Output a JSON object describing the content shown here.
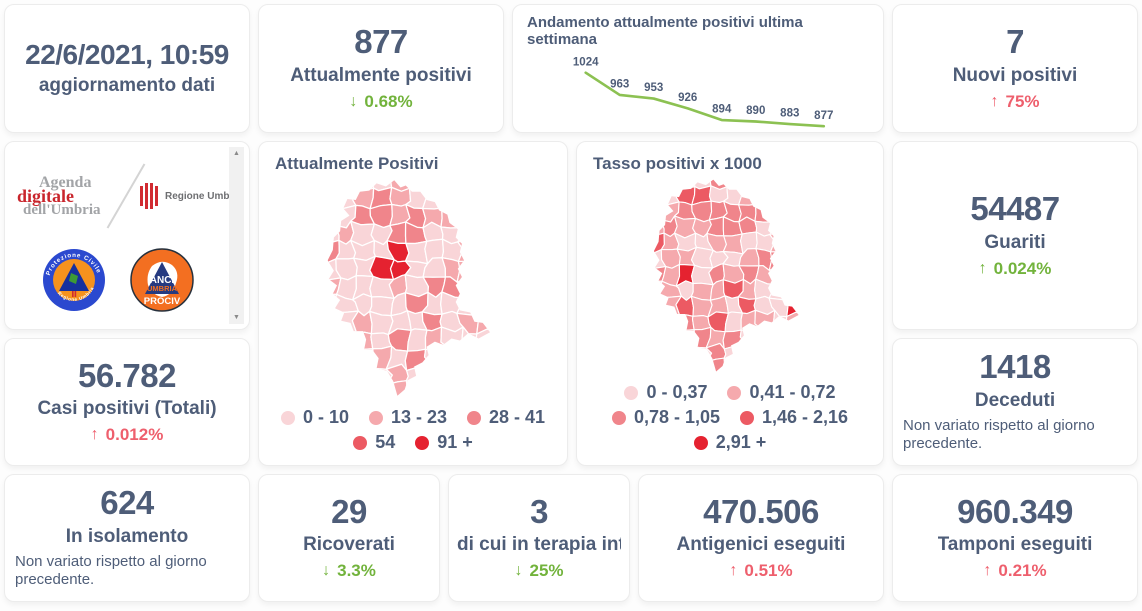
{
  "theme": {
    "text_color": "#4e5d78",
    "positive_green": "#72b33c",
    "negative_red": "#ee5f6d",
    "card_background": "#ffffff",
    "scrollbar_track": "#f1f1f1"
  },
  "icons": {
    "scroll_up": "▲",
    "scroll_down": "▼"
  },
  "cards": {
    "updated": {
      "value": "22/6/2021, 10:59",
      "label": "aggiornamento dati"
    },
    "attualmente_positivi": {
      "value": "877",
      "label": "Attualmente positivi",
      "delta": {
        "arrow": "↓",
        "text": "0.68%",
        "color": "#72b33c"
      }
    },
    "nuovi_positivi": {
      "value": "7",
      "label": "Nuovi positivi",
      "delta": {
        "arrow": "↑",
        "text": "75%",
        "color": "#ee5f6d"
      }
    },
    "guariti": {
      "value": "54487",
      "label": "Guariti",
      "delta": {
        "arrow": "↑",
        "text": "0.024%",
        "color": "#72b33c"
      }
    },
    "casi_positivi_totali": {
      "value": "56.782",
      "label": "Casi positivi (Totali)",
      "delta": {
        "arrow": "↑",
        "text": "0.012%",
        "color": "#ee5f6d"
      }
    },
    "deceduti": {
      "value": "1418",
      "label": "Deceduti",
      "note": "Non variato rispetto al giorno precedente."
    },
    "in_isolamento": {
      "value": "624",
      "label": "In isolamento",
      "note": "Non variato rispetto al giorno precedente."
    },
    "ricoverati": {
      "value": "29",
      "label": "Ricoverati",
      "delta": {
        "arrow": "↓",
        "text": "3.3%",
        "color": "#72b33c"
      }
    },
    "terapia_intensiva": {
      "value": "3",
      "label": "di cui in terapia int...",
      "delta": {
        "arrow": "↓",
        "text": "25%",
        "color": "#72b33c"
      }
    },
    "antigenici": {
      "value": "470.506",
      "label": "Antigenici eseguiti",
      "delta": {
        "arrow": "↑",
        "text": "0.51%",
        "color": "#ee5f6d"
      }
    },
    "tamponi": {
      "value": "960.349",
      "label": "Tamponi eseguiti",
      "delta": {
        "arrow": "↑",
        "text": "0.21%",
        "color": "#ee5f6d"
      }
    }
  },
  "chart_data": [
    {
      "type": "line",
      "title": "Andamento attualmente positivi ultima settimana",
      "series": [
        {
          "name": "Attualmente positivi",
          "values": [
            1024,
            963,
            953,
            926,
            894,
            890,
            883,
            877
          ]
        }
      ],
      "point_labels": true,
      "line_color": "#8cc152",
      "axes_hidden": true,
      "grid": false
    },
    {
      "type": "choropleth",
      "title": "Attualmente Positivi",
      "legend": [
        {
          "label": "0 - 10",
          "color": "#f9d5d8"
        },
        {
          "label": "13 - 23",
          "color": "#f5a9ad"
        },
        {
          "label": "28 - 41",
          "color": "#f0858b"
        },
        {
          "label": "54",
          "color": "#ec5a63"
        },
        {
          "label": "91 +",
          "color": "#e52230"
        }
      ],
      "legend_position": "bottom"
    },
    {
      "type": "choropleth",
      "title": "Tasso positivi x 1000",
      "legend": [
        {
          "label": "0 - 0,37",
          "color": "#f9d5d8"
        },
        {
          "label": "0,41 - 0,72",
          "color": "#f5a9ad"
        },
        {
          "label": "0,78 - 1,05",
          "color": "#f0858b"
        },
        {
          "label": "1,46 - 2,16",
          "color": "#ec5a63"
        },
        {
          "label": "2,91 +",
          "color": "#e52230"
        }
      ],
      "legend_position": "bottom"
    }
  ],
  "logos": {
    "agenda_digitale": {
      "line1": "Agenda",
      "line2": "digitale",
      "line3": "dell'Umbria"
    },
    "regione_umbria": {
      "label": "Regione Umbria"
    },
    "protezione_civile": {
      "arc_top": "Protezione Civile",
      "arc_bottom": "Regione Umbria"
    },
    "anci_prociv": {
      "line1": "ANCI",
      "line2": "UMBRIA",
      "line3": "PROCIV"
    }
  }
}
